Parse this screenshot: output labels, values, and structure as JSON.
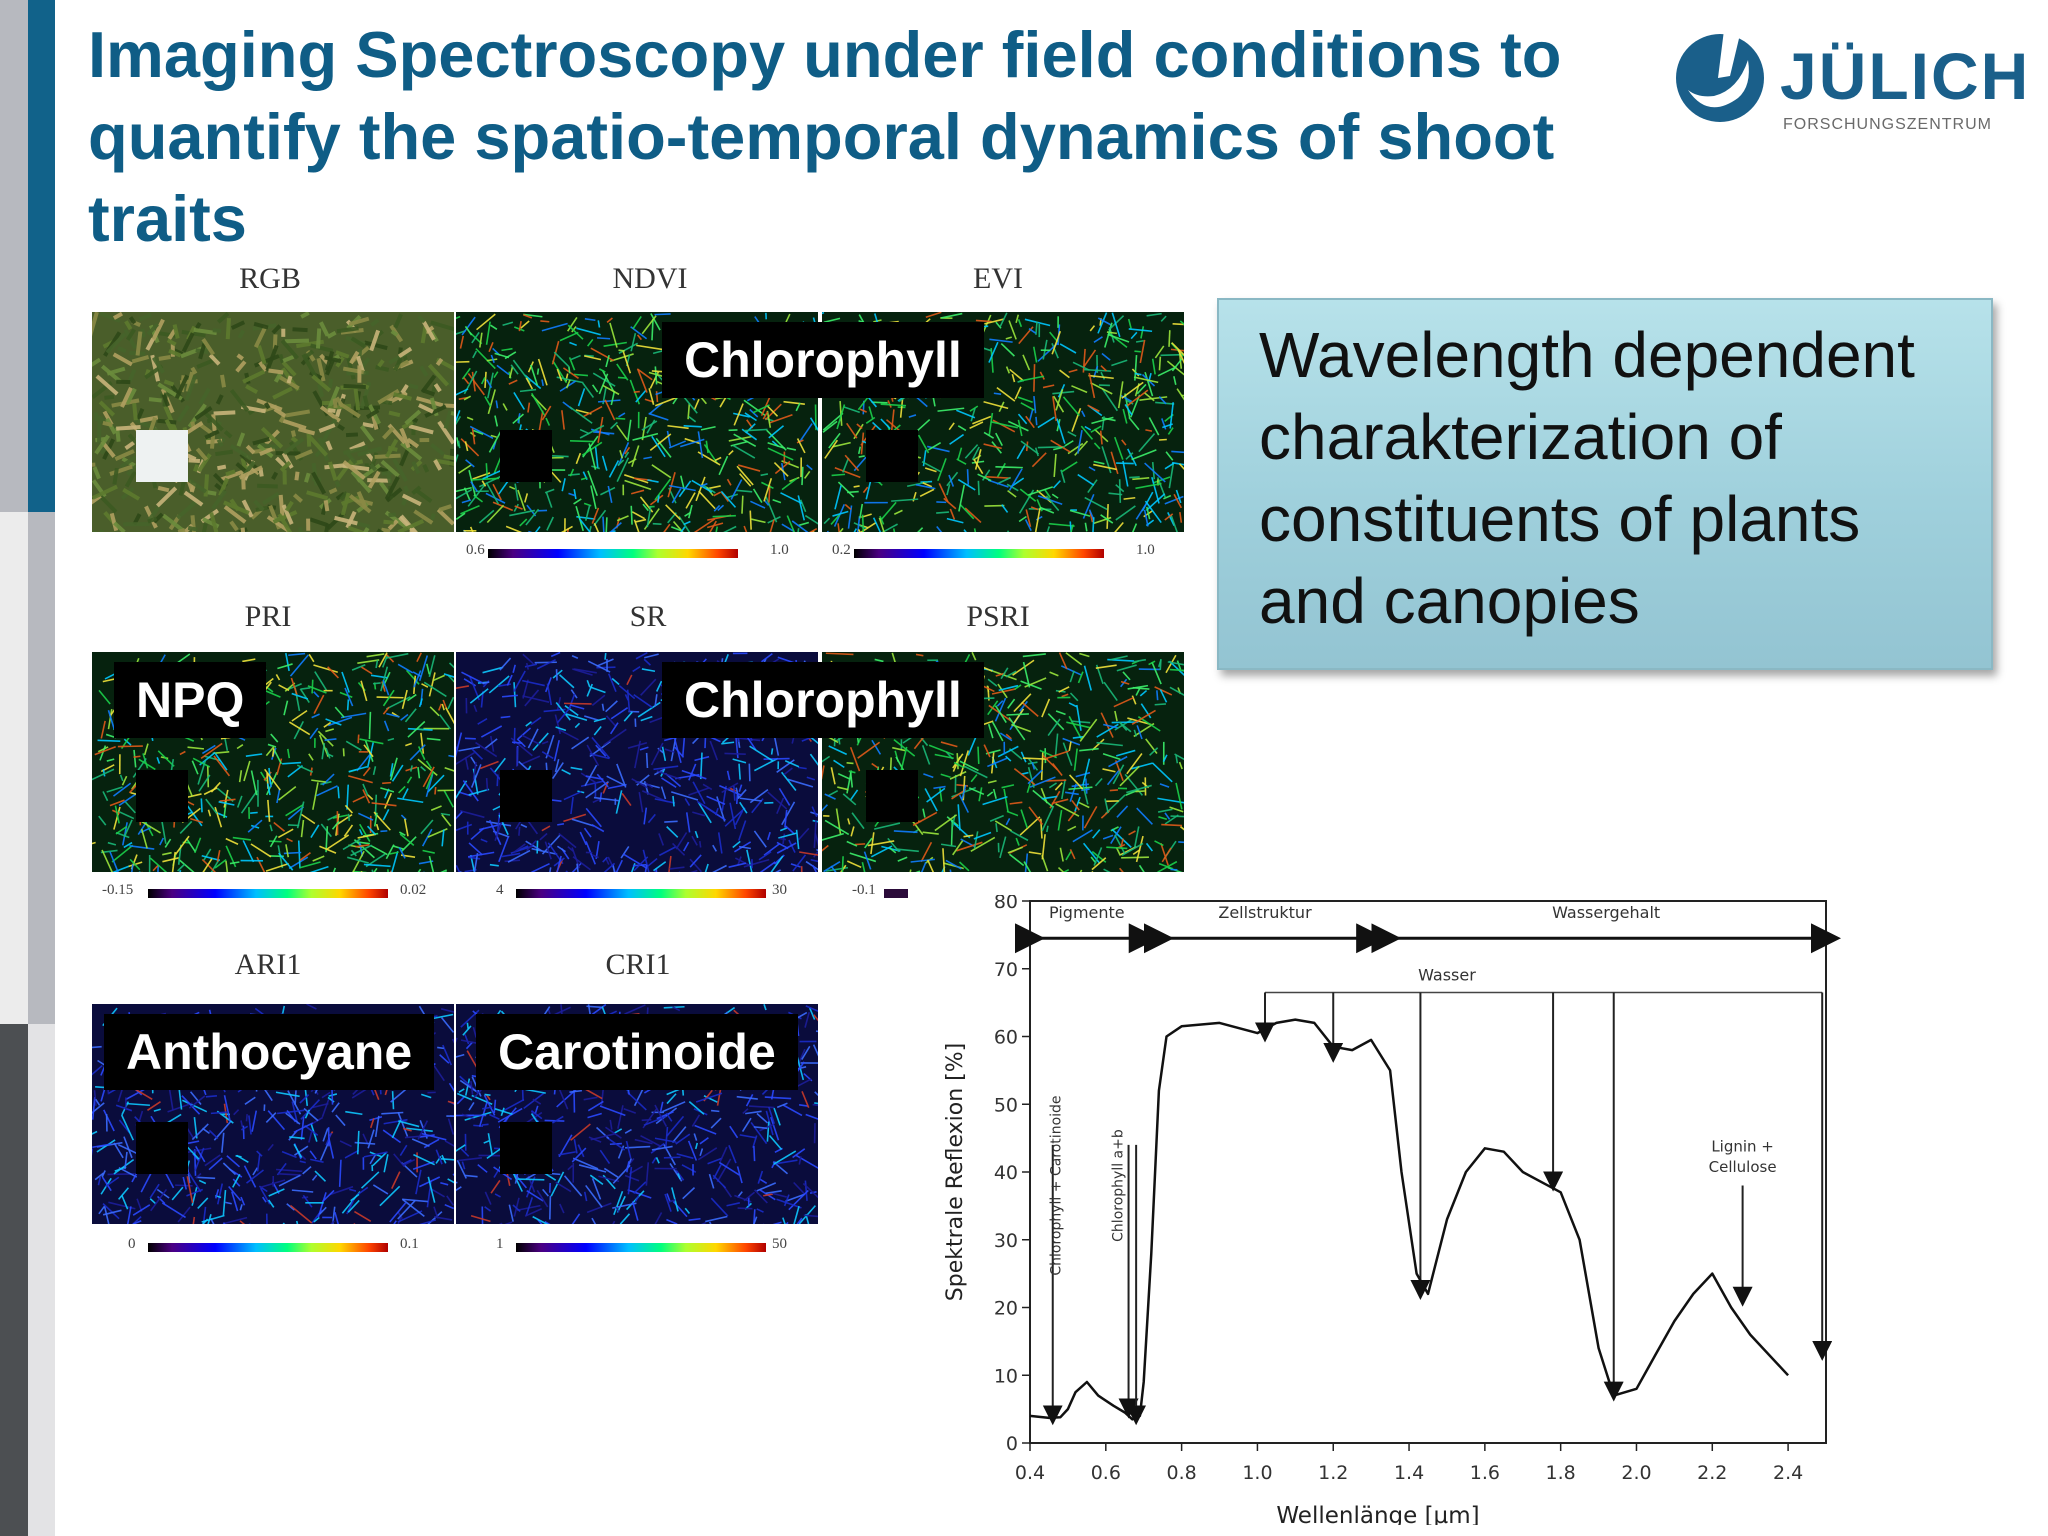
{
  "slide": {
    "title_lines": [
      "Imaging Spectroscopy under field conditions to",
      "quantify the spatio-temporal dynamics of shoot",
      "traits"
    ]
  },
  "logo": {
    "name": "JÜLICH",
    "subtitle": "FORSCHUNGSZENTRUM"
  },
  "panels": [
    {
      "name": "RGB",
      "colorbar": null,
      "tag": null,
      "palette": "rgb"
    },
    {
      "name": "NDVI",
      "colorbar": {
        "min": "0.6",
        "max": "1.0"
      },
      "tag": "Chlorophyll",
      "palette": "green"
    },
    {
      "name": "EVI",
      "colorbar": {
        "min": "0.2",
        "max": "1.0"
      },
      "tag": null,
      "palette": "green"
    },
    {
      "name": "PRI",
      "colorbar": {
        "min": "-0.15",
        "max": "0.02"
      },
      "tag": "NPQ",
      "palette": "green"
    },
    {
      "name": "SR",
      "colorbar": {
        "min": "4",
        "max": "30"
      },
      "tag": "Chlorophyll",
      "palette": "blue"
    },
    {
      "name": "PSRI",
      "colorbar": {
        "min": "-0.1",
        "max": ""
      },
      "tag": null,
      "palette": "green"
    },
    {
      "name": "ARI1",
      "colorbar": {
        "min": "0",
        "max": "0.1"
      },
      "tag": "Anthocyane",
      "palette": "blue"
    },
    {
      "name": "CRI1",
      "colorbar": {
        "min": "1",
        "max": "50"
      },
      "tag": "Carotinoide",
      "palette": "blue"
    }
  ],
  "infobox": {
    "text": "Wavelength dependent charakterization of constituents of plants and canopies"
  },
  "chart_data": {
    "type": "line",
    "title": "",
    "xlabel": "Wellenlänge [µm]",
    "ylabel": "Spektrale Reflexion [%]",
    "xlim": [
      0.4,
      2.5
    ],
    "ylim": [
      0,
      80
    ],
    "xticks": [
      "0.4",
      "0.6",
      "0.8",
      "1.0",
      "1.2",
      "1.4",
      "1.6",
      "1.8",
      "2.0",
      "2.2",
      "2.4"
    ],
    "yticks": [
      "0",
      "10",
      "20",
      "30",
      "40",
      "50",
      "60",
      "70",
      "80"
    ],
    "regions": [
      {
        "label": "Pigmente",
        "from": 0.4,
        "to": 0.7
      },
      {
        "label": "Zellstruktur",
        "from": 0.74,
        "to": 1.3
      },
      {
        "label": "Wassergehalt",
        "from": 1.34,
        "to": 2.5
      }
    ],
    "annotations": {
      "wasser": "Wasser",
      "chl_car": "Chlorophyll + Carotinoide",
      "chl_ab": "Chlorophyll a+b",
      "lignin": "Lignin +",
      "cellulose": "Cellulose"
    },
    "series": [
      {
        "values": [
          [
            0.4,
            4
          ],
          [
            0.45,
            3.7
          ],
          [
            0.48,
            3.8
          ],
          [
            0.5,
            5
          ],
          [
            0.52,
            7.5
          ],
          [
            0.55,
            9
          ],
          [
            0.58,
            7
          ],
          [
            0.62,
            5.5
          ],
          [
            0.65,
            4.5
          ],
          [
            0.67,
            3.5
          ],
          [
            0.69,
            4
          ],
          [
            0.7,
            9
          ],
          [
            0.72,
            28
          ],
          [
            0.74,
            52
          ],
          [
            0.76,
            60
          ],
          [
            0.8,
            61.5
          ],
          [
            0.9,
            62
          ],
          [
            1.0,
            60.5
          ],
          [
            1.05,
            62
          ],
          [
            1.1,
            62.5
          ],
          [
            1.15,
            62
          ],
          [
            1.2,
            58.5
          ],
          [
            1.25,
            58
          ],
          [
            1.3,
            59.5
          ],
          [
            1.35,
            55
          ],
          [
            1.38,
            40
          ],
          [
            1.42,
            25
          ],
          [
            1.45,
            22
          ],
          [
            1.5,
            33
          ],
          [
            1.55,
            40
          ],
          [
            1.6,
            43.5
          ],
          [
            1.65,
            43
          ],
          [
            1.7,
            40
          ],
          [
            1.75,
            38.5
          ],
          [
            1.8,
            37
          ],
          [
            1.85,
            30
          ],
          [
            1.9,
            14
          ],
          [
            1.94,
            7
          ],
          [
            2.0,
            8
          ],
          [
            2.05,
            13
          ],
          [
            2.1,
            18
          ],
          [
            2.15,
            22
          ],
          [
            2.2,
            25
          ],
          [
            2.25,
            20
          ],
          [
            2.3,
            16
          ],
          [
            2.4,
            10
          ]
        ]
      }
    ]
  }
}
